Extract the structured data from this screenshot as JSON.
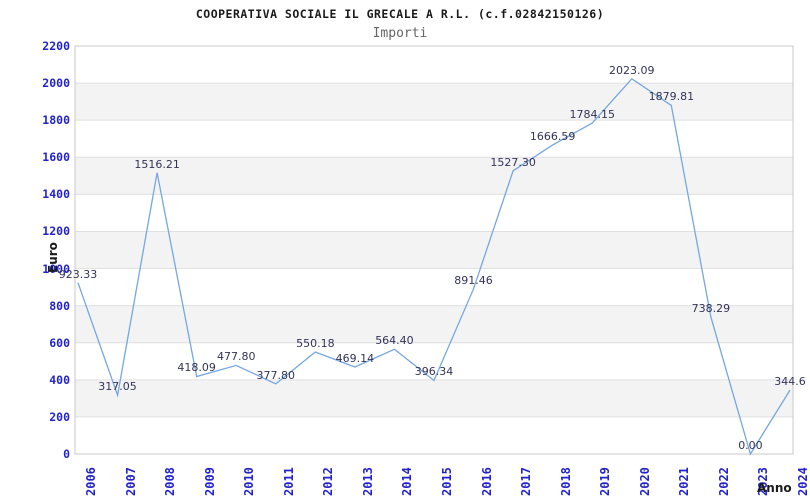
{
  "title": "COOPERATIVA SOCIALE IL GRECALE A R.L. (c.f.02842150126)",
  "subtitle": "Importi",
  "chart_data": {
    "type": "line",
    "title": "COOPERATIVA SOCIALE IL GRECALE A R.L. (c.f.02842150126)",
    "subtitle": "Importi",
    "xlabel": "Anno",
    "ylabel": "Euro",
    "categories": [
      "2006",
      "2007",
      "2008",
      "2009",
      "2010",
      "2011",
      "2012",
      "2013",
      "2014",
      "2015",
      "2016",
      "2017",
      "2018",
      "2019",
      "2020",
      "2021",
      "2022",
      "2023",
      "2024"
    ],
    "values": [
      923.33,
      317.05,
      1516.21,
      418.09,
      477.8,
      377.8,
      550.18,
      469.14,
      564.4,
      396.34,
      891.46,
      1527.3,
      1666.59,
      1784.15,
      2023.09,
      1879.81,
      738.29,
      0.0,
      344.6
    ],
    "point_labels": [
      "923.33",
      "317.05",
      "1516.21",
      "418.09",
      "477.80",
      "377.80",
      "550.18",
      "469.14",
      "564.40",
      "396.34",
      "891.46",
      "1527.30",
      "1666.59",
      "1784.15",
      "2023.09",
      "1879.81",
      "738.29",
      "0.00",
      "344.6"
    ],
    "ylim": [
      0,
      2200
    ],
    "yticks": [
      0,
      200,
      400,
      600,
      800,
      1000,
      1200,
      1400,
      1600,
      1800,
      2000,
      2200
    ],
    "grid": "horizontal-only",
    "bands": "alternating gray between gridlines (200-400, 600-800, 1000-1200, 1400-1600, 1800-2000)",
    "legend_position": "none",
    "colors": {
      "line": "#76a7df",
      "axis_tick_text": "#2323cc",
      "point_label_text": "#33335a",
      "band_fill": "#f3f3f3",
      "gridline": "#e0e0e0",
      "plot_border": "#c9c9c9",
      "title_text": "#1a1a1a",
      "subtitle_text": "#666666",
      "axis_title_text": "#1a1a1a",
      "background": "#ffffff"
    }
  }
}
